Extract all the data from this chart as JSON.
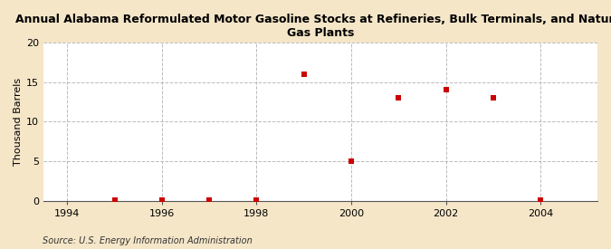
{
  "title": "Annual Alabama Reformulated Motor Gasoline Stocks at Refineries, Bulk Terminals, and Natural\nGas Plants",
  "ylabel": "Thousand Barrels",
  "source": "Source: U.S. Energy Information Administration",
  "figure_bg": "#f5e6c8",
  "plot_bg": "#ffffff",
  "marker_color": "#cc0000",
  "marker": "s",
  "marker_size": 4,
  "x_data": [
    1995,
    1996,
    1997,
    1998,
    1999,
    2000,
    2001,
    2002,
    2003,
    2004
  ],
  "y_data": [
    0.05,
    0.05,
    0.05,
    0.05,
    16,
    5,
    13,
    14,
    13,
    0.05
  ],
  "xlim": [
    1993.5,
    2005.2
  ],
  "ylim": [
    0,
    20
  ],
  "xticks": [
    1994,
    1996,
    1998,
    2000,
    2002,
    2004
  ],
  "yticks": [
    0,
    5,
    10,
    15,
    20
  ],
  "grid_color": "#aaaaaa",
  "grid_style": "--",
  "grid_alpha": 0.8,
  "title_fontsize": 9,
  "axis_fontsize": 8,
  "source_fontsize": 7
}
